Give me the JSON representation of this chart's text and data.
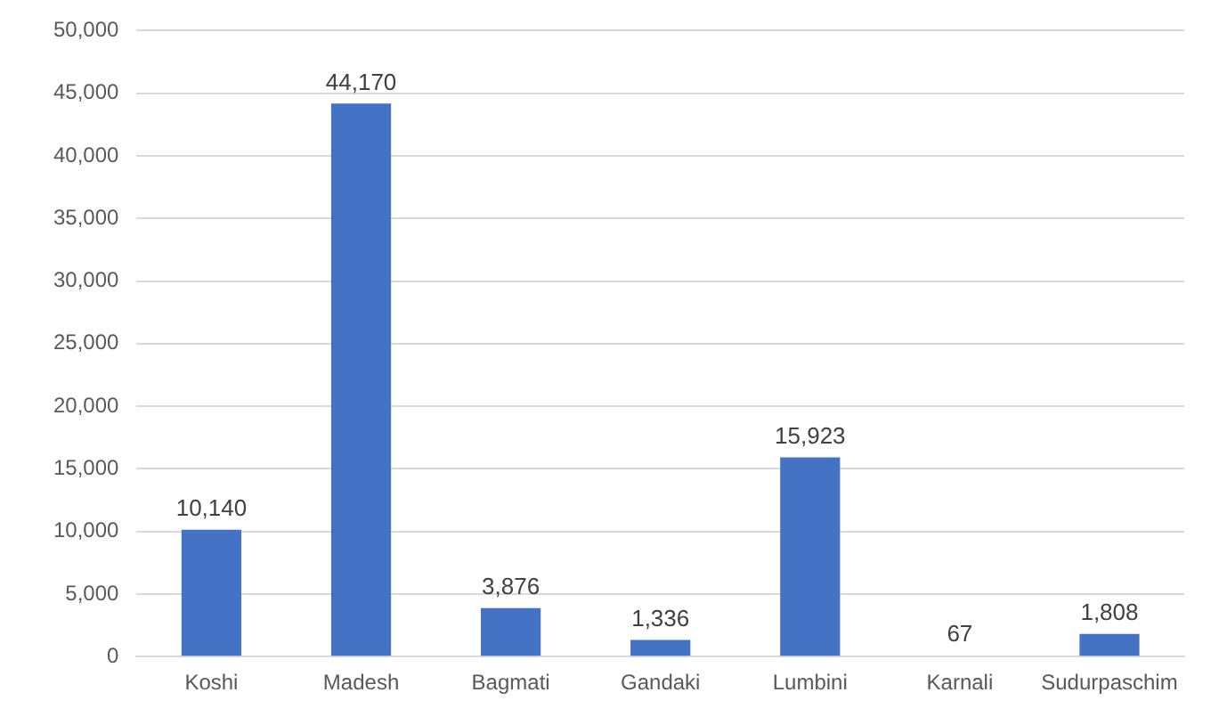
{
  "chart_data": {
    "type": "bar",
    "categories": [
      "Koshi",
      "Madesh",
      "Bagmati",
      "Gandaki",
      "Lumbini",
      "Karnali",
      "Sudurpaschim"
    ],
    "values": [
      10140,
      44170,
      3876,
      1336,
      15923,
      67,
      1808
    ],
    "value_labels": [
      "10,140",
      "44,170",
      "3,876",
      "1,336",
      "15,923",
      "67",
      "1,808"
    ],
    "color": "#4472c4",
    "ylim": [
      0,
      50000
    ],
    "yticks": [
      {
        "value": 0,
        "label": "0"
      },
      {
        "value": 5000,
        "label": "5,000"
      },
      {
        "value": 10000,
        "label": "10,000"
      },
      {
        "value": 15000,
        "label": "15,000"
      },
      {
        "value": 20000,
        "label": "20,000"
      },
      {
        "value": 25000,
        "label": "25,000"
      },
      {
        "value": 30000,
        "label": "30,000"
      },
      {
        "value": 35000,
        "label": "35,000"
      },
      {
        "value": 40000,
        "label": "40,000"
      },
      {
        "value": 45000,
        "label": "45,000"
      },
      {
        "value": 50000,
        "label": "50,000"
      }
    ],
    "grid": "y",
    "legend": false
  }
}
